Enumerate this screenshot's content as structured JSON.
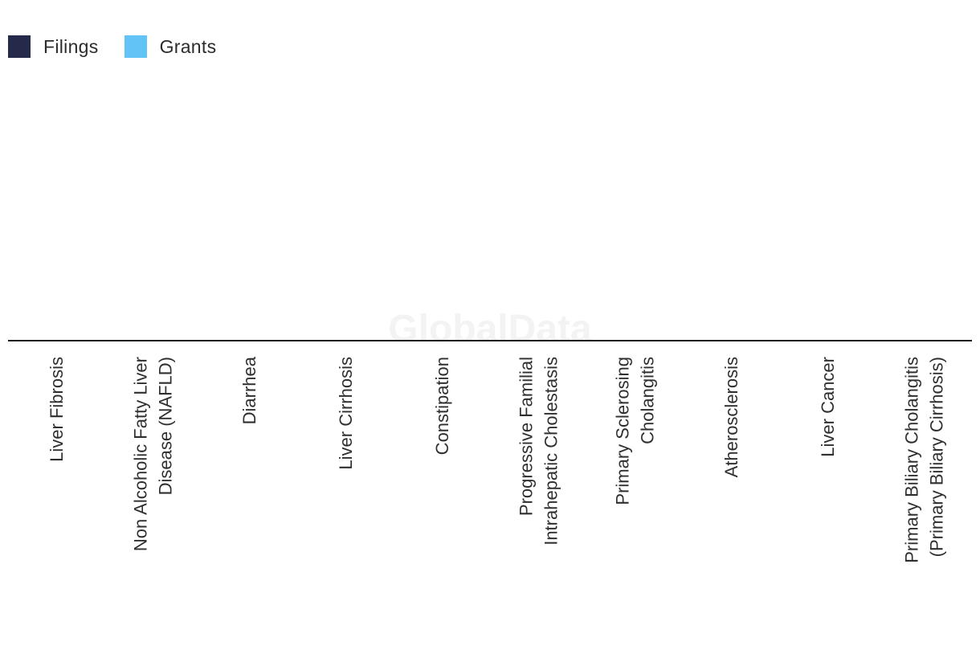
{
  "chart_data": {
    "type": "bar",
    "title": "",
    "xlabel": "",
    "ylabel": "",
    "categories": [
      [
        "Liver Fibrosis"
      ],
      [
        "Non Alcoholic Fatty Liver",
        "Disease (NAFLD)"
      ],
      [
        "Diarrhea"
      ],
      [
        "Liver Cirrhosis"
      ],
      [
        "Constipation"
      ],
      [
        "Progressive Familial",
        "Intrahepatic Cholestasis"
      ],
      [
        "Primary Sclerosing",
        "Cholangitis"
      ],
      [
        "Atherosclerosis"
      ],
      [
        "Liver Cancer"
      ],
      [
        "Primary Biliary Cholangitis",
        "(Primary Biliary Cirrhosis)"
      ]
    ],
    "series": [
      {
        "name": "Filings",
        "color": "#252a4a",
        "values": [
          0,
          0,
          0,
          0,
          0,
          0,
          0,
          0,
          0,
          0
        ]
      },
      {
        "name": "Grants",
        "color": "#62c3f7",
        "values": [
          0,
          0,
          0,
          0,
          0,
          0,
          0,
          0,
          0,
          0
        ]
      }
    ],
    "grid": false,
    "legend_position": "top-left",
    "watermark": "GlobalData"
  }
}
